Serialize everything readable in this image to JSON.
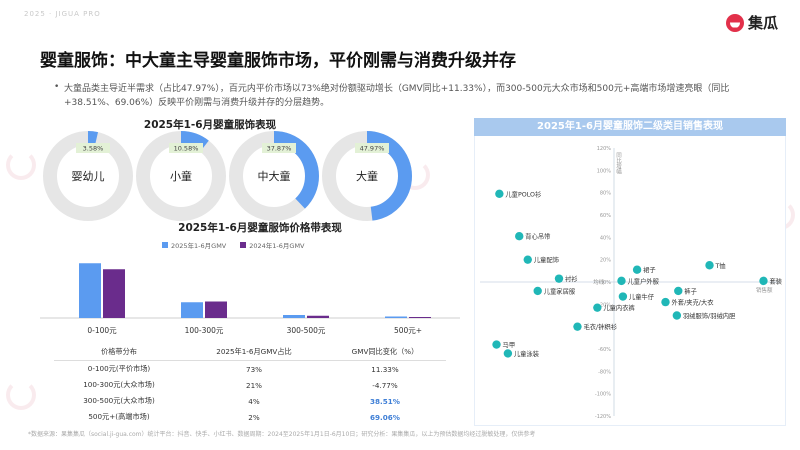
{
  "brand": {
    "watermark": "2025 · JIGUA PRO",
    "logo_text": "集瓜"
  },
  "title": "婴童服饰：中大童主导婴童服饰市场，平价刚需与消费升级并存",
  "description": "大童品类主导近半需求（占比47.97%），百元内平价市场以73%绝对份额驱动增长（GMV同比+11.33%），而300-500元大众市场和500元+高端市场增速亮眼（同比+38.51%、69.06%）反映平价刚需与消费升级并存的分层趋势。",
  "footer": "*数据来源：果集集瓜（social.ji-gua.com）统计平台：抖音、快手、小红书、数据周期：2024至2025年1月1日-6月10日；研究分析：果集集瓜，以上为预估数据均经过脱敏处理，仅供参考",
  "colors": {
    "gmv2025": "#5b9bf0",
    "gmv2024": "#6a2c8c",
    "donut_bg": "#e6e6e6",
    "donut_fill": "#5b9bf0",
    "accent": "#14b3b3"
  },
  "chart_data": [
    {
      "type": "pie",
      "title": "2025年1-6月婴童服饰表现",
      "slices": [
        {
          "label": "婴幼儿",
          "value": 3.58,
          "value_label": "3.58%"
        },
        {
          "label": "小童",
          "value": 10.58,
          "value_label": "10.58%"
        },
        {
          "label": "中大童",
          "value": 37.87,
          "value_label": "37.87%"
        },
        {
          "label": "大童",
          "value": 47.97,
          "value_label": "47.97%"
        }
      ]
    },
    {
      "type": "bar",
      "title": "2025年1-6月婴童服饰价格带表现",
      "categories": [
        "0-100元",
        "100-300元",
        "300-500元",
        "500元+"
      ],
      "series": [
        {
          "name": "2025年1-6月GMV",
          "values": [
            73,
            21,
            4,
            2
          ]
        },
        {
          "name": "2024年1-6月GMV",
          "values": [
            65,
            22,
            3,
            1.2
          ]
        }
      ],
      "ylim": [
        0,
        80
      ]
    },
    {
      "type": "table",
      "headers": [
        "价格带分布",
        "2025年1-6月GMV占比",
        "GMV同比变化（%）"
      ],
      "rows": [
        {
          "band": "0-100元(平价市场)",
          "share": "73%",
          "yoy": "11.33%",
          "highlight": false
        },
        {
          "band": "100-300元(大众市场)",
          "share": "21%",
          "yoy": "-4.77%",
          "highlight": false
        },
        {
          "band": "300-500元(大众市场)",
          "share": "4%",
          "yoy": "38.51%",
          "highlight": true
        },
        {
          "band": "500元+(高端市场)",
          "share": "2%",
          "yoy": "69.06%",
          "highlight": true
        }
      ]
    },
    {
      "type": "scatter",
      "title": "2025年1-6月婴童服饰二级类目销售表现",
      "xlabel": "销售额",
      "ylabel": "同比增幅",
      "xlim": [
        -1,
        1
      ],
      "ylim": [
        -120,
        120
      ],
      "yticks": [
        "120%",
        "100%",
        "80%",
        "60%",
        "40%",
        "20%",
        "0%",
        "-20%",
        "-40%",
        "-60%",
        "-80%",
        "-100%",
        "-120%"
      ],
      "points": [
        {
          "label": "儿童POLO衫",
          "x": -0.92,
          "y": 79
        },
        {
          "label": "背心吊带",
          "x": -0.78,
          "y": 41
        },
        {
          "label": "儿童配饰",
          "x": -0.72,
          "y": 20
        },
        {
          "label": "裙子",
          "x": 0.05,
          "y": 11
        },
        {
          "label": "T恤",
          "x": 0.56,
          "y": 15
        },
        {
          "label": "儿童户外服",
          "x": -0.06,
          "y": 1
        },
        {
          "label": "衬衫",
          "x": -0.5,
          "y": 3
        },
        {
          "label": "均线",
          "x": -0.26,
          "y": 0
        },
        {
          "label": "套装",
          "x": 0.94,
          "y": 1
        },
        {
          "label": "儿童家居服",
          "x": -0.65,
          "y": -8
        },
        {
          "label": "裤子",
          "x": 0.34,
          "y": -8
        },
        {
          "label": "儿童牛仔",
          "x": -0.05,
          "y": -13
        },
        {
          "label": "外套/夹克/大衣",
          "x": 0.25,
          "y": -18
        },
        {
          "label": "儿童内衣裤",
          "x": -0.23,
          "y": -23
        },
        {
          "label": "羽绒服饰/羽绒内胆",
          "x": 0.33,
          "y": -30
        },
        {
          "label": "毛衣/针织衫",
          "x": -0.37,
          "y": -40
        },
        {
          "label": "马甲",
          "x": -0.94,
          "y": -56
        },
        {
          "label": "儿童泳装",
          "x": -0.86,
          "y": -64
        }
      ]
    }
  ]
}
